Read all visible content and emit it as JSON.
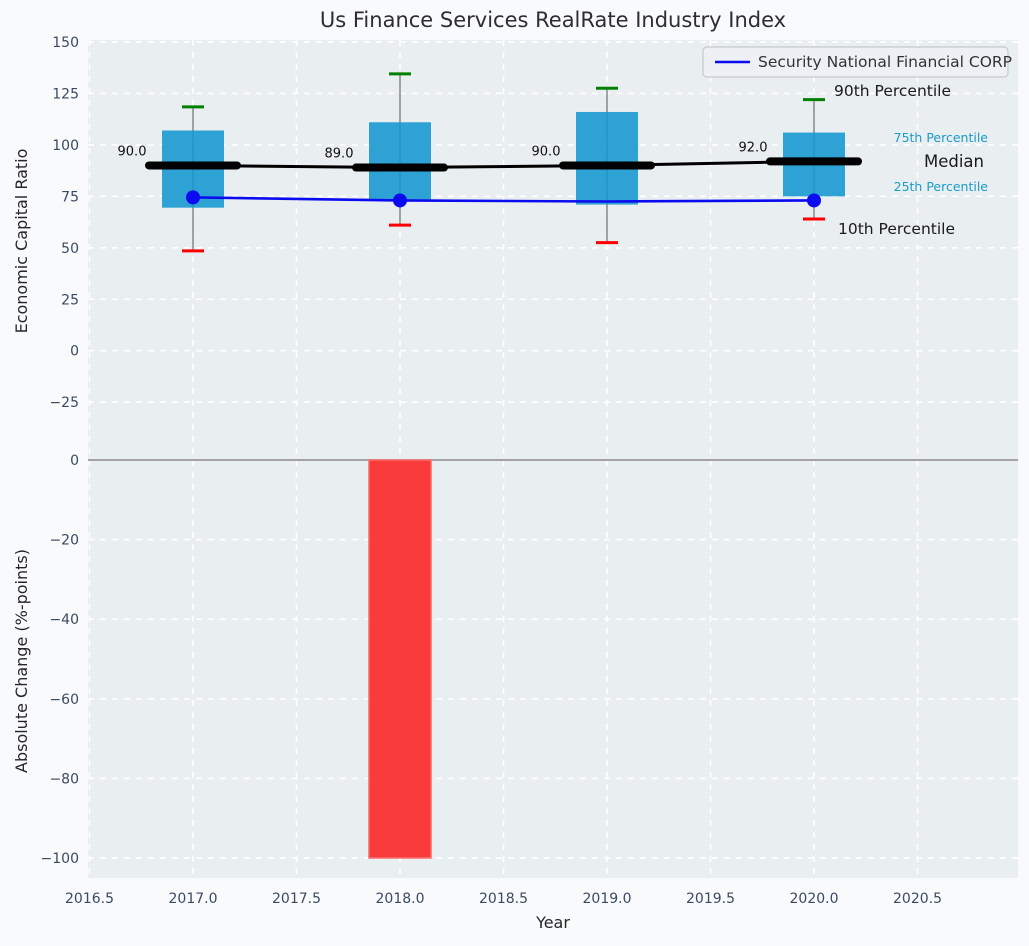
{
  "title": "Us Finance Services RealRate Industry Index",
  "legend": {
    "label": "Security National Financial CORP"
  },
  "axis": {
    "top_ylabel": "Economic Capital Ratio",
    "bottom_ylabel": "Absolute Change (%-points)",
    "xlabel": "Year"
  },
  "annotations": {
    "p90": "90th Percentile",
    "p75": "75th Percentile",
    "median": "Median",
    "p25": "25th Percentile",
    "p10": "10th Percentile"
  },
  "colors": {
    "figure_bg": "#f9fafc",
    "axes_bg": "#e9eef0",
    "grid": "#ffffff",
    "box_fill": "#1397cf",
    "median_line": "#000000",
    "company_line": "#0b0bf0",
    "whisker": "#7f7f7f",
    "cap_high": "#008000",
    "cap_low": "#ff0000",
    "bar_fill": "#fa3b3b",
    "bar_edge": "#fc6e6e",
    "zero_line": "#a3a3a3",
    "tick_label": "#3b4a63",
    "axis_label": "#262626",
    "title": "#2e2e2e",
    "percentile_label_cyan": "#1a9bc9",
    "annotation_black": "#1a1a1a",
    "legend_bg": "#edeff4",
    "legend_border": "#c8c9cd",
    "legend_text": "#333333"
  },
  "chart_data": [
    {
      "type": "boxplot",
      "title": "Us Finance Services RealRate Industry Index",
      "xlabel": "Year",
      "ylabel": "Economic Capital Ratio",
      "x": [
        2017,
        2018,
        2019,
        2020
      ],
      "xticks": [
        2016.5,
        2017.0,
        2017.5,
        2018.0,
        2018.5,
        2019.0,
        2019.5,
        2020.0,
        2020.5
      ],
      "yticks": [
        150,
        125,
        100,
        75,
        50,
        25,
        0,
        -25
      ],
      "ylim": [
        -45,
        151
      ],
      "xlim": [
        2016.49,
        2021.0
      ],
      "grid": true,
      "legend_position": "upper right",
      "boxes": [
        {
          "year": 2017,
          "p10": 48.5,
          "p25": 69.5,
          "median": 90.0,
          "p75": 107.0,
          "p90": 118.5,
          "label": "90.0"
        },
        {
          "year": 2018,
          "p10": 61.0,
          "p25": 73.5,
          "median": 89.0,
          "p75": 111.0,
          "p90": 134.5,
          "label": "89.0"
        },
        {
          "year": 2019,
          "p10": 52.5,
          "p25": 71.0,
          "median": 90.0,
          "p75": 116.0,
          "p90": 127.5,
          "label": "90.0"
        },
        {
          "year": 2020,
          "p10": 64.0,
          "p25": 75.0,
          "median": 92.0,
          "p75": 106.0,
          "p90": 122.0,
          "label": "92.0"
        }
      ],
      "series": [
        {
          "name": "Security National Financial CORP",
          "x": [
            2017,
            2018,
            2019,
            2020
          ],
          "values": [
            74.5,
            73.0,
            72.5,
            73.0
          ],
          "marker_years": [
            2017,
            2018,
            2020
          ]
        }
      ]
    },
    {
      "type": "bar",
      "xlabel": "Year",
      "ylabel": "Absolute Change (%-points)",
      "categories": [
        2018
      ],
      "values": [
        -100
      ],
      "yticks": [
        0,
        -20,
        -40,
        -60,
        -80,
        -100
      ],
      "ylim": [
        -106,
        4
      ],
      "bar_width": 0.3,
      "grid": true
    }
  ]
}
